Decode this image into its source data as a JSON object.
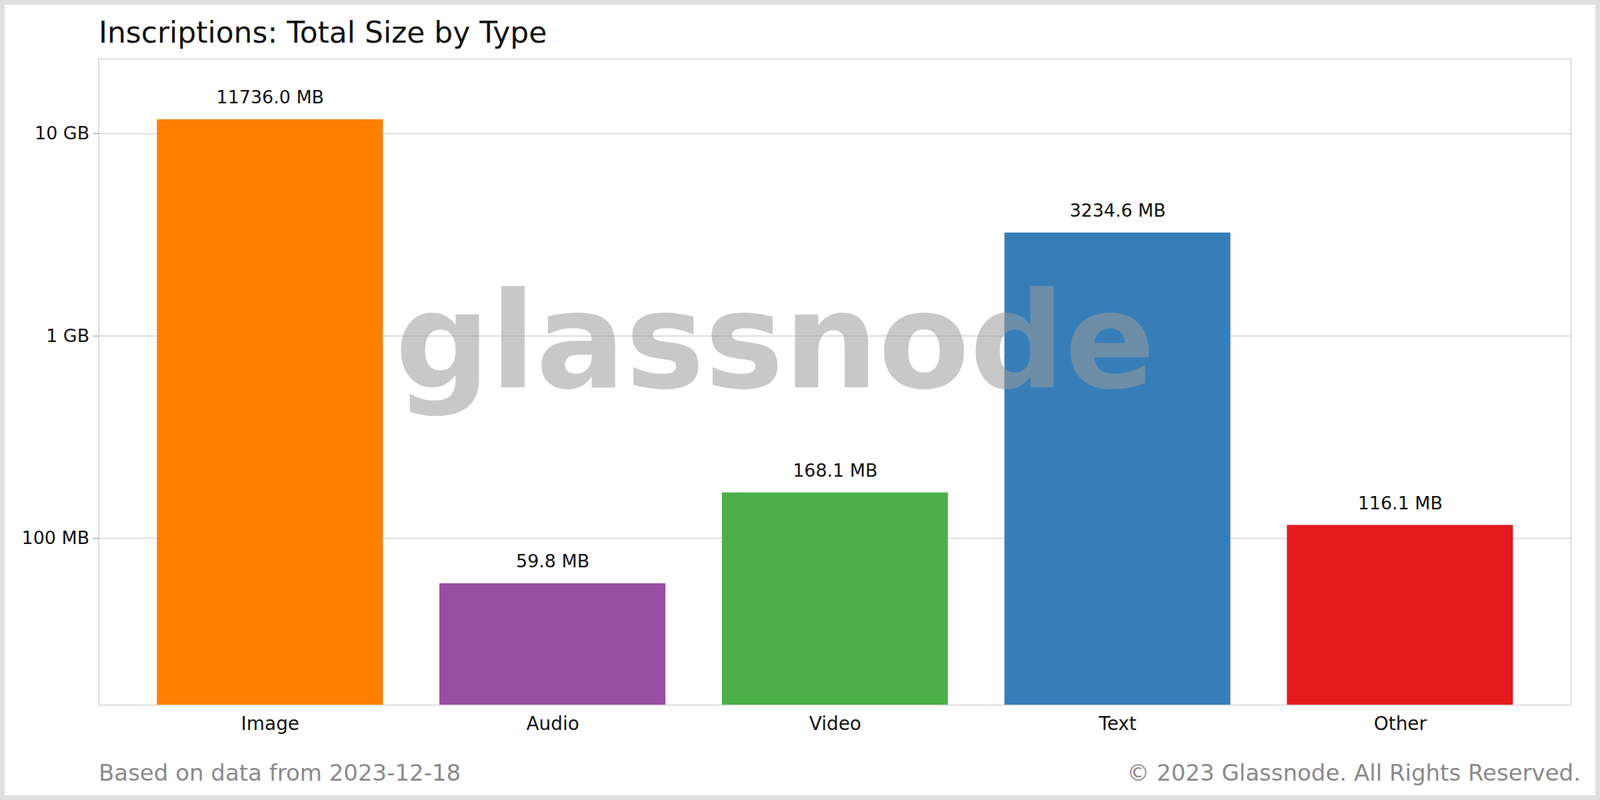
{
  "chart_data": {
    "type": "bar",
    "title": "Inscriptions: Total Size by Type",
    "caption": "Based on data from 2023-12-18",
    "copyright": "© 2023 Glassnode. All Rights Reserved.",
    "watermark": "glassnode",
    "categories": [
      "Image",
      "Audio",
      "Video",
      "Text",
      "Other"
    ],
    "values": [
      11736.0,
      59.8,
      168.1,
      3234.6,
      116.1
    ],
    "value_labels": [
      "11736.0 MB",
      "59.8 MB",
      "168.1 MB",
      "3234.6 MB",
      "116.1 MB"
    ],
    "colors": [
      "#ff7f00",
      "#984ea3",
      "#4daf4a",
      "#377eb8",
      "#e41a1c"
    ],
    "ylim": [
      15,
      23400
    ],
    "yticks": [
      {
        "value": 100,
        "label": "100 MB"
      },
      {
        "value": 1000,
        "label": "1 GB"
      },
      {
        "value": 10000,
        "label": "10 GB"
      }
    ],
    "log": "y",
    "grid": true,
    "data_labels": true
  }
}
